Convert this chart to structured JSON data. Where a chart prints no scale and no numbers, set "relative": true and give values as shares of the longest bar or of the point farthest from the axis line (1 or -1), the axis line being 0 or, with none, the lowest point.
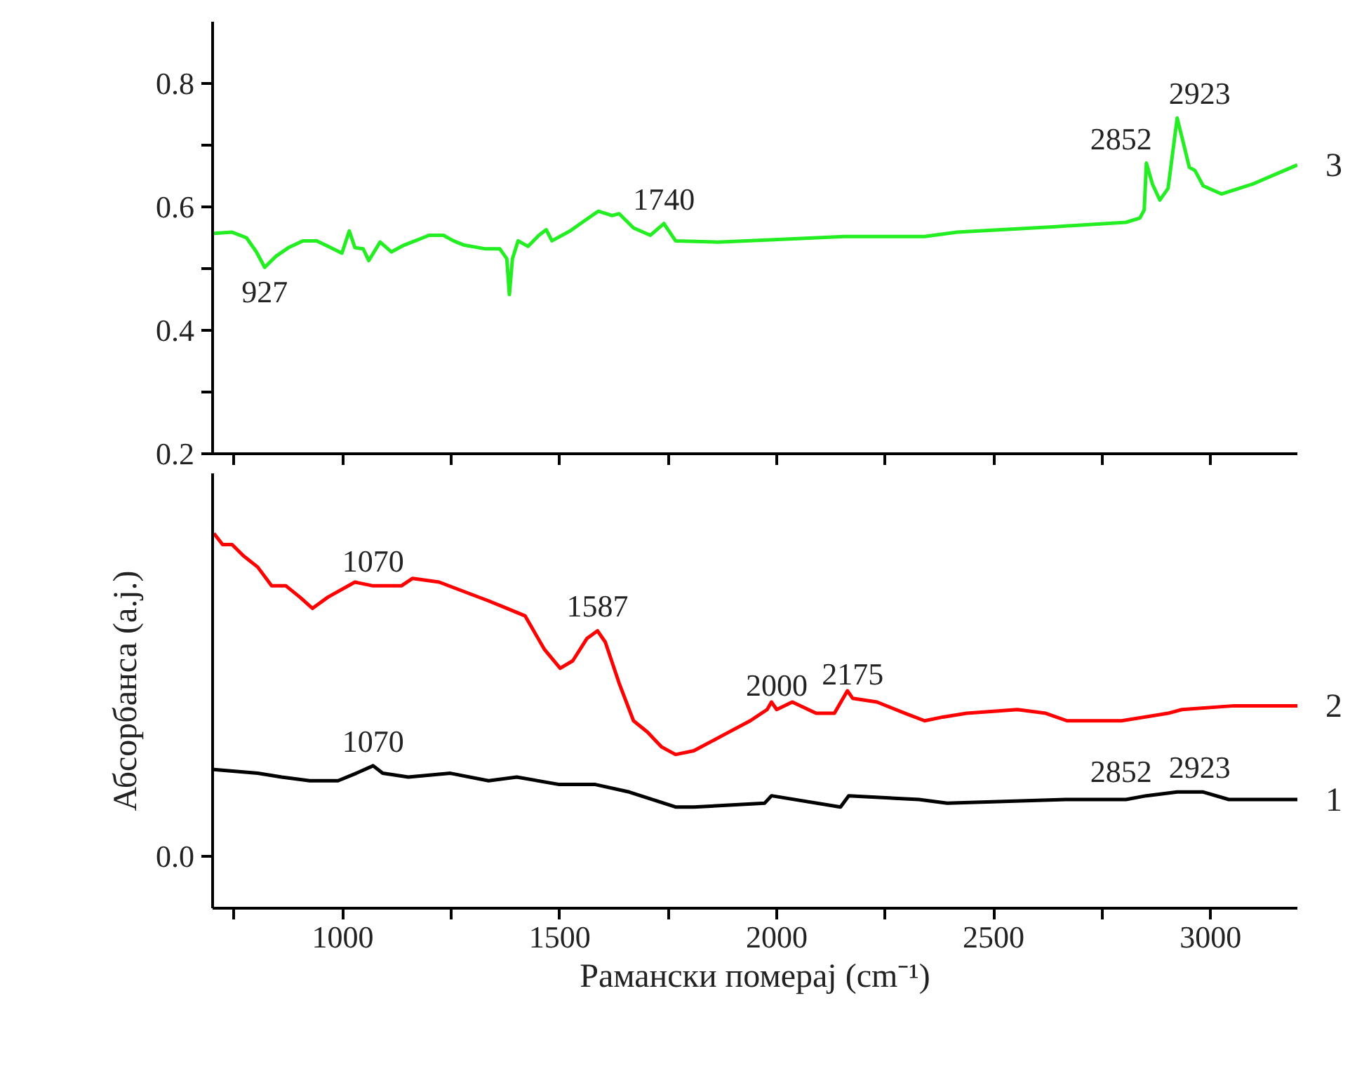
{
  "chart_data": [
    {
      "type": "line",
      "tick_labels": "y",
      "xlim": [
        700,
        3200
      ],
      "xticks": [
        {
          "value": 750,
          "label": null
        },
        1000,
        {
          "value": 1250,
          "label": null
        },
        1500,
        {
          "value": 1750,
          "label": null
        },
        2000,
        {
          "value": 2250,
          "label": null
        },
        2500,
        {
          "value": 2750,
          "label": null
        },
        3000
      ],
      "ylim": [
        0.2,
        0.9
      ],
      "yticks": [
        0.2,
        {
          "value": 0.3,
          "label": null
        },
        0.4,
        {
          "value": 0.5,
          "label": null
        },
        0.6,
        {
          "value": 0.7,
          "label": null
        },
        0.8
      ],
      "series": [
        {
          "name": "3",
          "color": "#22ee22",
          "x": [
            703,
            745,
            778,
            801,
            820,
            846,
            875,
            908,
            940,
            972,
            998,
            1015,
            1028,
            1047,
            1060,
            1086,
            1112,
            1141,
            1167,
            1199,
            1232,
            1255,
            1280,
            1329,
            1362,
            1378,
            1384,
            1391,
            1404,
            1427,
            1452,
            1469,
            1482,
            1524,
            1556,
            1589,
            1621,
            1637,
            1670,
            1709,
            1740,
            1767,
            1864,
            1994,
            2156,
            2341,
            2416,
            2643,
            2805,
            2837,
            2847,
            2852,
            2866,
            2883,
            2902,
            2923,
            2935,
            2951,
            2964,
            2983,
            3025,
            3097,
            3200
          ],
          "values": [
            0.557,
            0.559,
            0.55,
            0.527,
            0.502,
            0.52,
            0.534,
            0.545,
            0.545,
            0.534,
            0.525,
            0.561,
            0.534,
            0.532,
            0.513,
            0.543,
            0.527,
            0.538,
            0.545,
            0.554,
            0.554,
            0.545,
            0.538,
            0.532,
            0.532,
            0.516,
            0.458,
            0.516,
            0.545,
            0.536,
            0.554,
            0.563,
            0.545,
            0.561,
            0.577,
            0.593,
            0.586,
            0.589,
            0.566,
            0.554,
            0.573,
            0.545,
            0.543,
            0.547,
            0.552,
            0.552,
            0.559,
            0.568,
            0.575,
            0.582,
            0.595,
            0.671,
            0.637,
            0.611,
            0.63,
            0.744,
            0.71,
            0.664,
            0.659,
            0.634,
            0.621,
            0.637,
            0.668
          ]
        }
      ],
      "annotations": [
        {
          "text": "927",
          "x": 820,
          "y": 0.502
        },
        {
          "text": "1740",
          "x": 1740,
          "y": 0.573
        },
        {
          "text": "2852",
          "x": 2852,
          "y": 0.671
        },
        {
          "text": "2923",
          "x": 2923,
          "y": 0.744
        }
      ]
    },
    {
      "type": "line",
      "relative": true,
      "xlabel": "Рамански померај (cm⁻¹)",
      "ylabel": "Абсорбанса (a.j.)",
      "xlim": [
        700,
        3200
      ],
      "xticks": [
        {
          "value": 750,
          "label": null
        },
        1000,
        {
          "value": 1250,
          "label": null
        },
        1500,
        {
          "value": 1750,
          "label": null
        },
        2000,
        {
          "value": 2250,
          "label": null
        },
        2500,
        {
          "value": 2750,
          "label": null
        },
        3000
      ],
      "series": [
        {
          "name": "2",
          "color": "#ff0000",
          "x": [
            703,
            723,
            745,
            771,
            804,
            836,
            869,
            901,
            930,
            966,
            1028,
            1070,
            1135,
            1161,
            1222,
            1290,
            1336,
            1378,
            1420,
            1465,
            1501,
            1530,
            1563,
            1587,
            1605,
            1637,
            1670,
            1702,
            1735,
            1767,
            1809,
            1874,
            1939,
            1978,
            1988,
            2000,
            2036,
            2091,
            2133,
            2163,
            2175,
            2231,
            2296,
            2341,
            2383,
            2438,
            2555,
            2620,
            2669,
            2795,
            2902,
            2934,
            3054,
            3200
          ],
          "values": [
            1.0,
            0.97,
            0.97,
            0.94,
            0.91,
            0.86,
            0.86,
            0.83,
            0.8,
            0.83,
            0.87,
            0.86,
            0.86,
            0.88,
            0.87,
            0.84,
            0.82,
            0.8,
            0.78,
            0.69,
            0.64,
            0.66,
            0.72,
            0.74,
            0.71,
            0.6,
            0.5,
            0.47,
            0.43,
            0.41,
            0.42,
            0.46,
            0.5,
            0.53,
            0.55,
            0.53,
            0.55,
            0.52,
            0.52,
            0.58,
            0.56,
            0.55,
            0.52,
            0.5,
            0.51,
            0.52,
            0.53,
            0.52,
            0.5,
            0.5,
            0.52,
            0.53,
            0.54,
            0.54
          ]
        },
        {
          "name": "1",
          "color": "#000000",
          "x": [
            703,
            804,
            859,
            924,
            989,
            1031,
            1070,
            1092,
            1151,
            1248,
            1336,
            1401,
            1499,
            1582,
            1660,
            1767,
            1809,
            1972,
            1988,
            2147,
            2166,
            2328,
            2393,
            2666,
            2805,
            2852,
            2923,
            2983,
            3042,
            3200
          ],
          "values": [
            0.37,
            0.36,
            0.35,
            0.34,
            0.34,
            0.36,
            0.38,
            0.36,
            0.35,
            0.36,
            0.34,
            0.35,
            0.33,
            0.33,
            0.31,
            0.27,
            0.27,
            0.28,
            0.3,
            0.27,
            0.3,
            0.29,
            0.28,
            0.29,
            0.29,
            0.3,
            0.31,
            0.31,
            0.29,
            0.29
          ]
        }
      ],
      "annotations": [
        "0.0",
        {
          "text": "1070",
          "x": 1070,
          "y": 0.86
        },
        {
          "text": "1587",
          "x": 1587,
          "y": 0.74
        },
        {
          "text": "2000",
          "x": 2000,
          "y": 0.53
        },
        {
          "text": "2175",
          "x": 2175,
          "y": 0.56
        },
        {
          "text": "1070",
          "x": 1070,
          "y": 0.38
        },
        {
          "text": "2852",
          "x": 2852,
          "y": 0.3
        },
        {
          "text": "2923",
          "x": 2923,
          "y": 0.31
        }
      ]
    }
  ]
}
